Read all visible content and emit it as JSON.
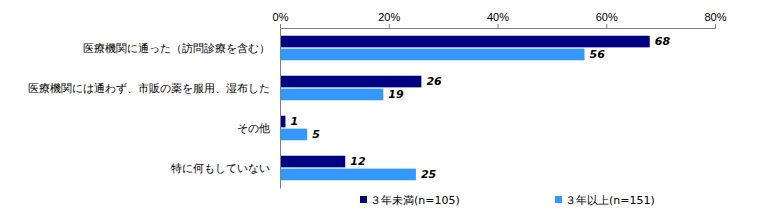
{
  "chart_data": {
    "type": "bar",
    "orientation": "horizontal",
    "categories": [
      "医療機関に通った（訪問診療を含む）",
      "医療機関には通わず、市販の薬を服用、湿布した",
      "その他",
      "特に何もしていない"
    ],
    "series": [
      {
        "name": "３年未満(n=105)",
        "color": "#000080",
        "values": [
          68,
          26,
          1,
          12
        ]
      },
      {
        "name": "３年以上(n=151)",
        "color": "#3399ff",
        "values": [
          56,
          19,
          5,
          25
        ]
      }
    ],
    "xlim": [
      0,
      80
    ],
    "xticks": [
      {
        "value": 0,
        "label": "0%"
      },
      {
        "value": 20,
        "label": "20%"
      },
      {
        "value": 40,
        "label": "40%"
      },
      {
        "value": 60,
        "label": "60%"
      },
      {
        "value": 80,
        "label": "80%"
      }
    ],
    "grid": false,
    "data_labels": true,
    "legend": "bottom"
  }
}
